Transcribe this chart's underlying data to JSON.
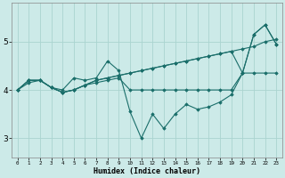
{
  "xlabel": "Humidex (Indice chaleur)",
  "bg_color": "#cceae8",
  "grid_color_major": "#aad4d0",
  "grid_color_minor": "#bbdedd",
  "line_color": "#1a6e6a",
  "ylim": [
    2.6,
    5.8
  ],
  "yticks": [
    3,
    4,
    5
  ],
  "figsize": [
    3.2,
    2.0
  ],
  "dpi": 100,
  "series": [
    [
      4.0,
      4.2,
      4.2,
      4.05,
      4.0,
      4.25,
      4.2,
      4.25,
      4.6,
      4.4,
      3.55,
      3.0,
      3.5,
      3.2,
      3.5,
      3.7,
      3.6,
      3.65,
      3.75,
      3.9,
      4.35,
      5.15,
      5.35,
      4.95
    ],
    [
      4.0,
      4.2,
      4.2,
      4.05,
      3.95,
      4.0,
      4.1,
      4.15,
      4.2,
      4.25,
      4.0,
      4.0,
      4.0,
      4.0,
      4.0,
      4.0,
      4.0,
      4.0,
      4.0,
      4.0,
      4.35,
      4.35,
      4.35,
      4.35
    ],
    [
      4.0,
      4.2,
      4.2,
      4.05,
      3.95,
      4.0,
      4.1,
      4.2,
      4.25,
      4.3,
      4.35,
      4.4,
      4.45,
      4.5,
      4.55,
      4.6,
      4.65,
      4.7,
      4.75,
      4.8,
      4.35,
      5.15,
      5.35,
      4.95
    ],
    [
      4.0,
      4.15,
      4.2,
      4.05,
      3.95,
      4.0,
      4.1,
      4.2,
      4.25,
      4.3,
      4.35,
      4.4,
      4.45,
      4.5,
      4.55,
      4.6,
      4.65,
      4.7,
      4.75,
      4.8,
      4.85,
      4.9,
      5.0,
      5.05
    ]
  ]
}
